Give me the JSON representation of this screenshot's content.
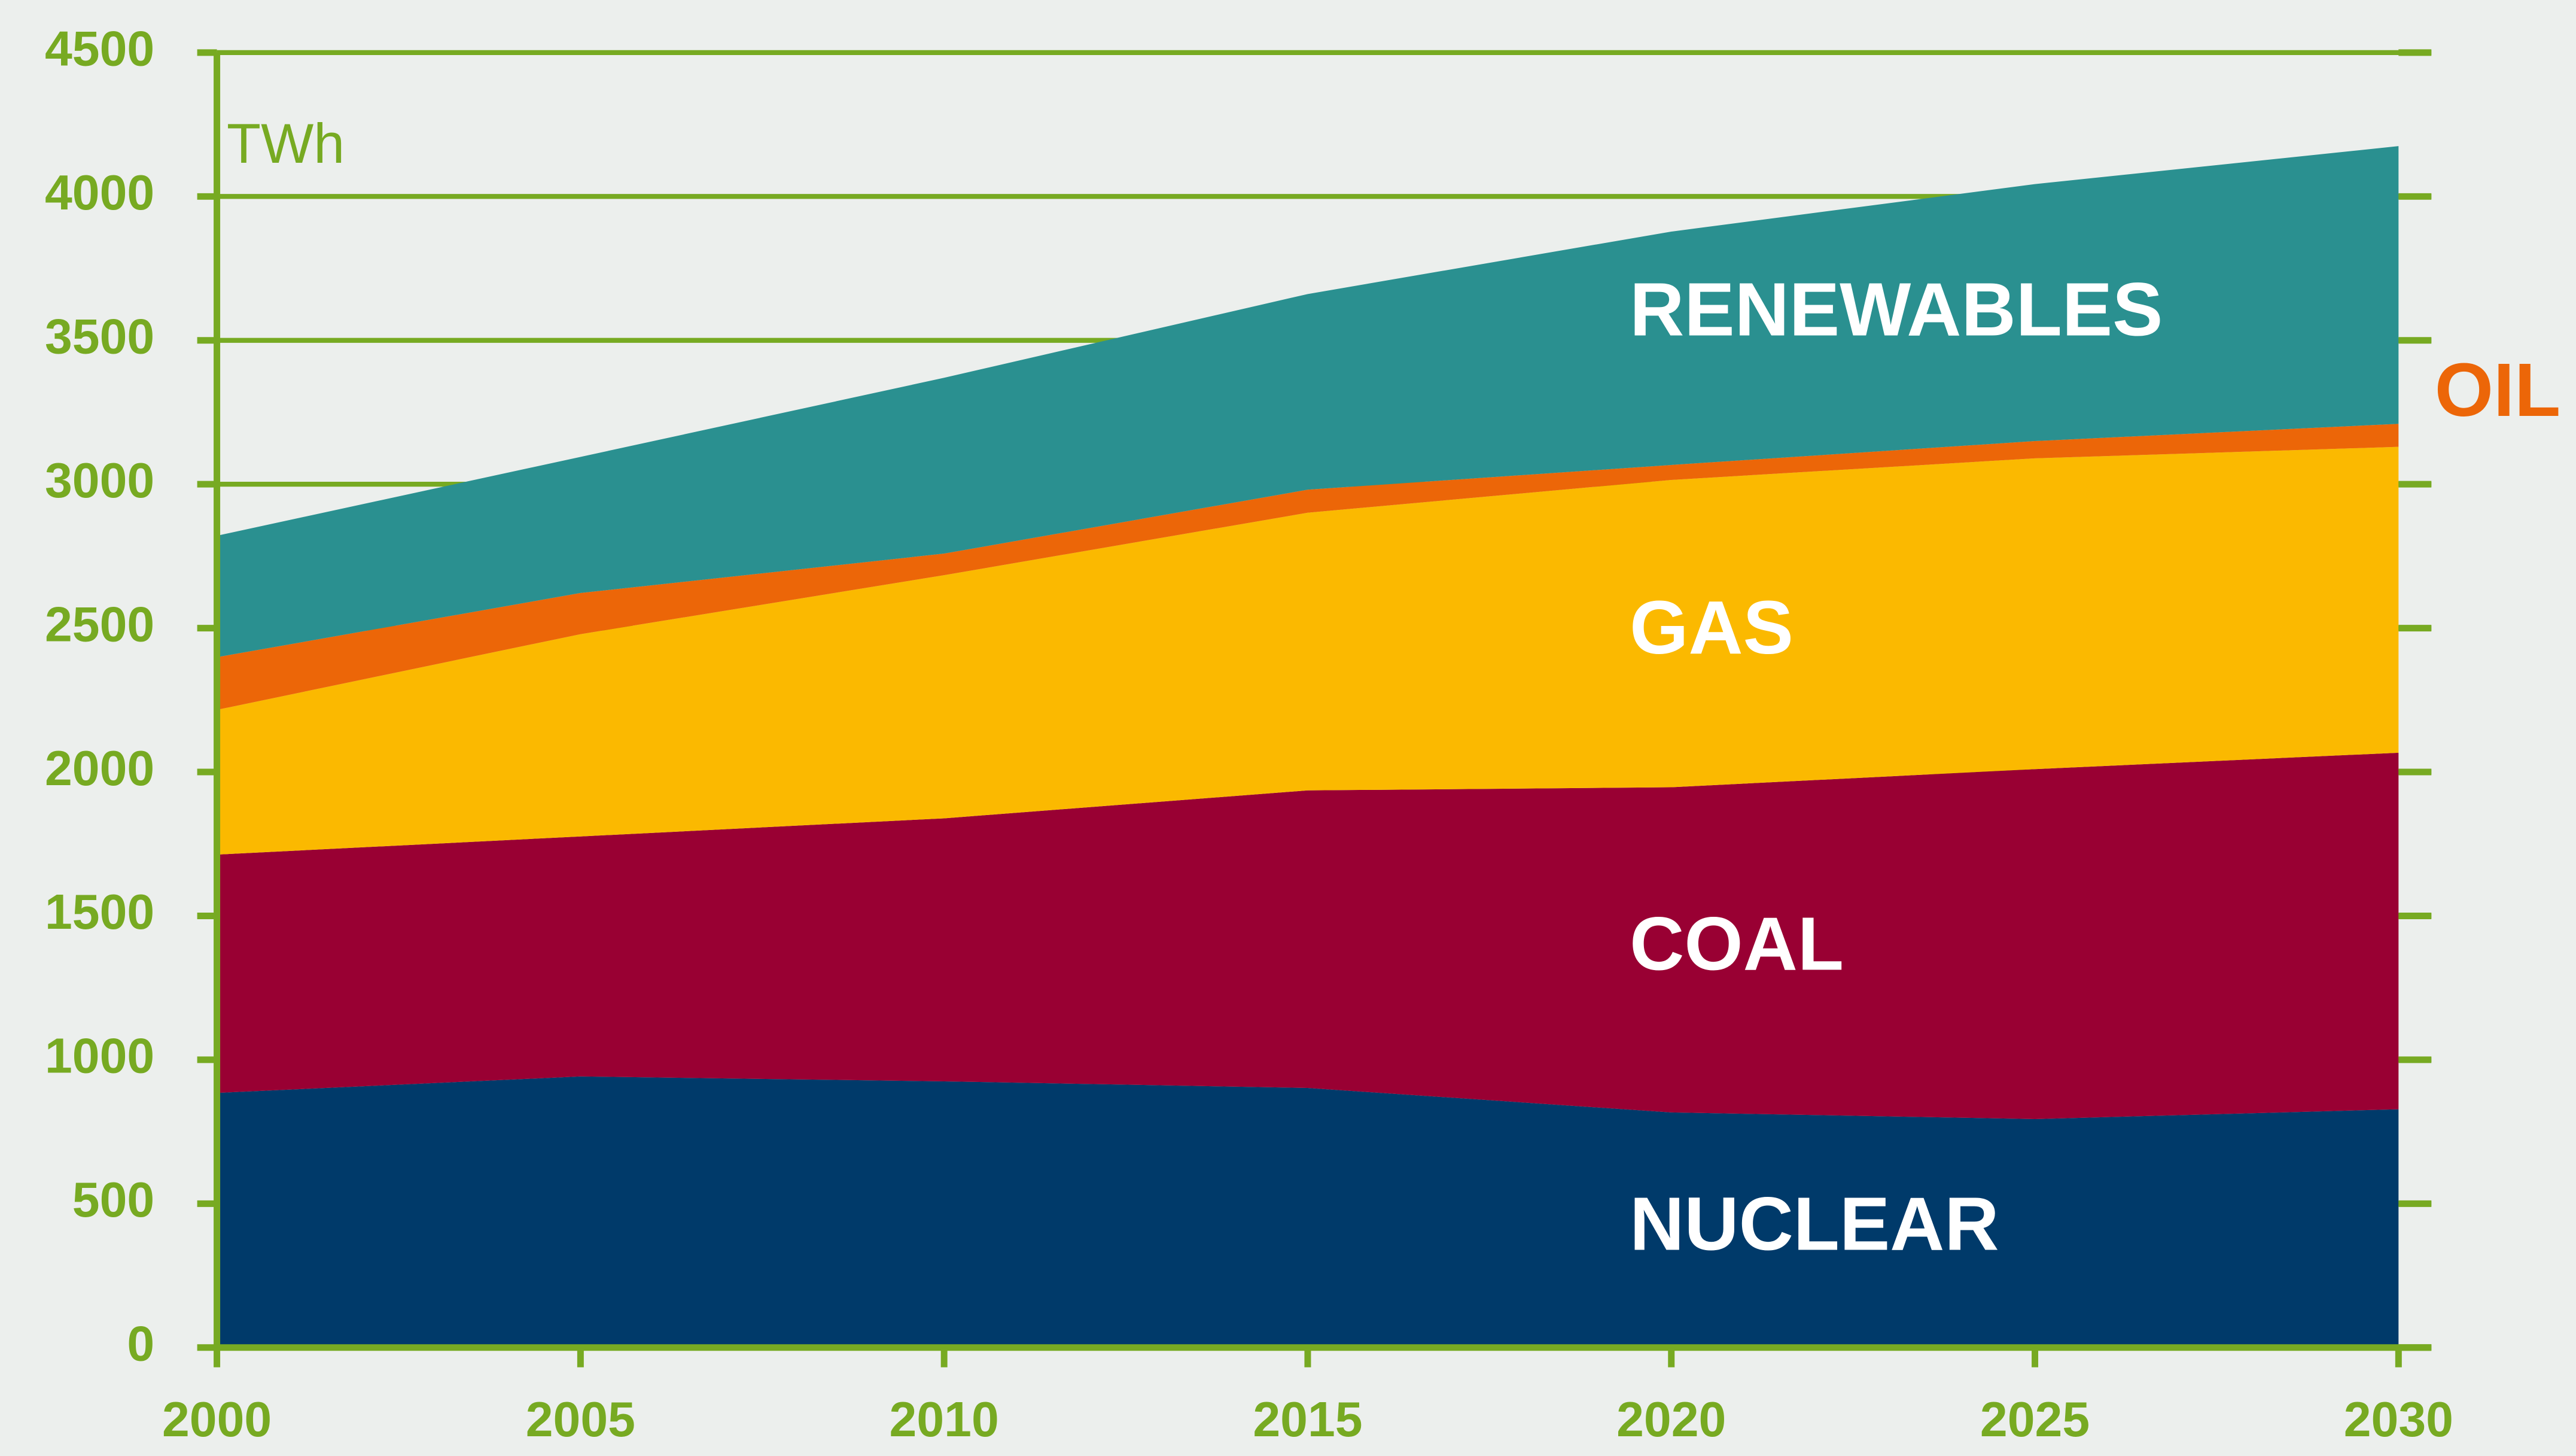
{
  "chart_data": {
    "type": "stacked_area",
    "y_label": "TWh",
    "x": [
      2000,
      2005,
      2010,
      2015,
      2020,
      2025,
      2030
    ],
    "xlim": [
      2000,
      2030
    ],
    "xticks": [
      2000,
      2005,
      2010,
      2015,
      2020,
      2025,
      2030
    ],
    "ylim": [
      0,
      4500
    ],
    "yticks": [
      0,
      500,
      1000,
      1500,
      2000,
      2500,
      3000,
      3500,
      4000,
      4500
    ],
    "grid": true,
    "series": [
      {
        "name": "NUCLEAR",
        "color": "#003a6a",
        "values": [
          885,
          942,
          925,
          902,
          817,
          794,
          828
        ]
      },
      {
        "name": "COAL",
        "color": "#990033",
        "values": [
          828,
          834,
          914,
          1034,
          1130,
          1216,
          1239
        ]
      },
      {
        "name": "GAS",
        "color": "#fbb900",
        "values": [
          503,
          703,
          845,
          965,
          1068,
          1080,
          1063
        ]
      },
      {
        "name": "OIL",
        "color": "#ec6608",
        "values": [
          183,
          143,
          75,
          80,
          52,
          60,
          80
        ]
      },
      {
        "name": "RENEWABLES",
        "color": "#2a9090",
        "values": [
          422,
          473,
          611,
          680,
          811,
          893,
          965
        ]
      }
    ]
  }
}
